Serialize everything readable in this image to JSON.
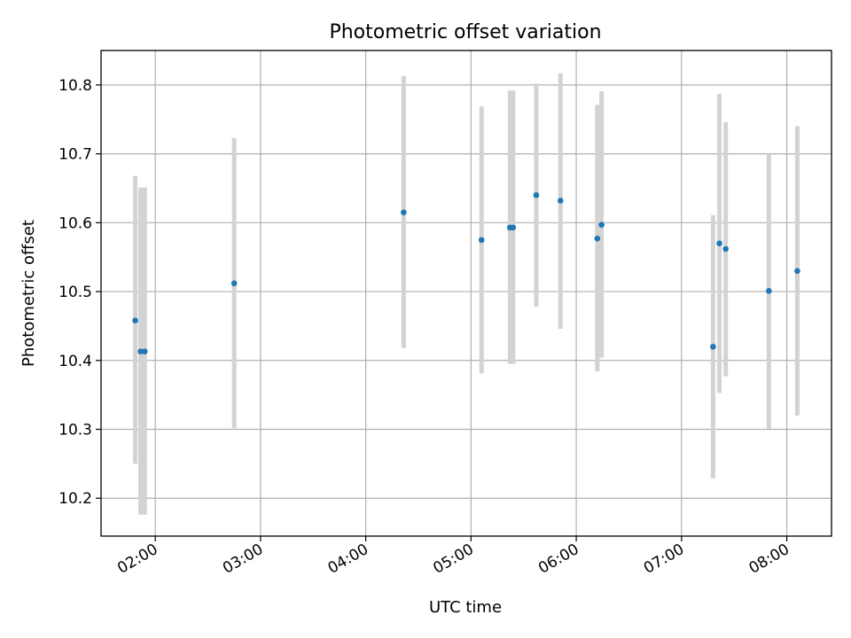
{
  "chart_data": {
    "type": "scatter",
    "title": "Photometric offset variation",
    "xlabel": "UTC time",
    "ylabel": "Photometric offset",
    "x_unit": "time of day (UTC, decimal hours)",
    "xlim": [
      1.485,
      8.425
    ],
    "ylim": [
      10.145,
      10.85
    ],
    "grid": true,
    "x_ticks": [
      {
        "value": 2,
        "label": "02:00"
      },
      {
        "value": 3,
        "label": "03:00"
      },
      {
        "value": 4,
        "label": "04:00"
      },
      {
        "value": 5,
        "label": "05:00"
      },
      {
        "value": 6,
        "label": "06:00"
      },
      {
        "value": 7,
        "label": "07:00"
      },
      {
        "value": 8,
        "label": "08:00"
      }
    ],
    "y_ticks": [
      {
        "value": 10.2,
        "label": "10.2"
      },
      {
        "value": 10.3,
        "label": "10.3"
      },
      {
        "value": 10.4,
        "label": "10.4"
      },
      {
        "value": 10.5,
        "label": "10.5"
      },
      {
        "value": 10.6,
        "label": "10.6"
      },
      {
        "value": 10.7,
        "label": "10.7"
      },
      {
        "value": 10.8,
        "label": "10.8"
      }
    ],
    "point_color": "#1f77b4",
    "errorbar_color": "#d3d3d3",
    "points": [
      {
        "x": 1.81,
        "y": 10.458,
        "yerr_low": 10.25,
        "yerr_high": 10.668
      },
      {
        "x": 1.86,
        "y": 10.413,
        "yerr_low": 10.176,
        "yerr_high": 10.651
      },
      {
        "x": 1.9,
        "y": 10.413,
        "yerr_low": 10.176,
        "yerr_high": 10.651
      },
      {
        "x": 2.75,
        "y": 10.512,
        "yerr_low": 10.302,
        "yerr_high": 10.723
      },
      {
        "x": 4.36,
        "y": 10.615,
        "yerr_low": 10.418,
        "yerr_high": 10.813
      },
      {
        "x": 5.1,
        "y": 10.575,
        "yerr_low": 10.381,
        "yerr_high": 10.769
      },
      {
        "x": 5.37,
        "y": 10.593,
        "yerr_low": 10.395,
        "yerr_high": 10.792
      },
      {
        "x": 5.4,
        "y": 10.593,
        "yerr_low": 10.395,
        "yerr_high": 10.792
      },
      {
        "x": 5.62,
        "y": 10.64,
        "yerr_low": 10.478,
        "yerr_high": 10.802
      },
      {
        "x": 5.85,
        "y": 10.632,
        "yerr_low": 10.446,
        "yerr_high": 10.817
      },
      {
        "x": 6.2,
        "y": 10.577,
        "yerr_low": 10.384,
        "yerr_high": 10.771
      },
      {
        "x": 6.24,
        "y": 10.597,
        "yerr_low": 10.404,
        "yerr_high": 10.791
      },
      {
        "x": 7.3,
        "y": 10.42,
        "yerr_low": 10.229,
        "yerr_high": 10.611
      },
      {
        "x": 7.36,
        "y": 10.57,
        "yerr_low": 10.353,
        "yerr_high": 10.787
      },
      {
        "x": 7.42,
        "y": 10.562,
        "yerr_low": 10.377,
        "yerr_high": 10.746
      },
      {
        "x": 7.83,
        "y": 10.501,
        "yerr_low": 10.301,
        "yerr_high": 10.7
      },
      {
        "x": 8.1,
        "y": 10.53,
        "yerr_low": 10.32,
        "yerr_high": 10.74
      }
    ]
  }
}
